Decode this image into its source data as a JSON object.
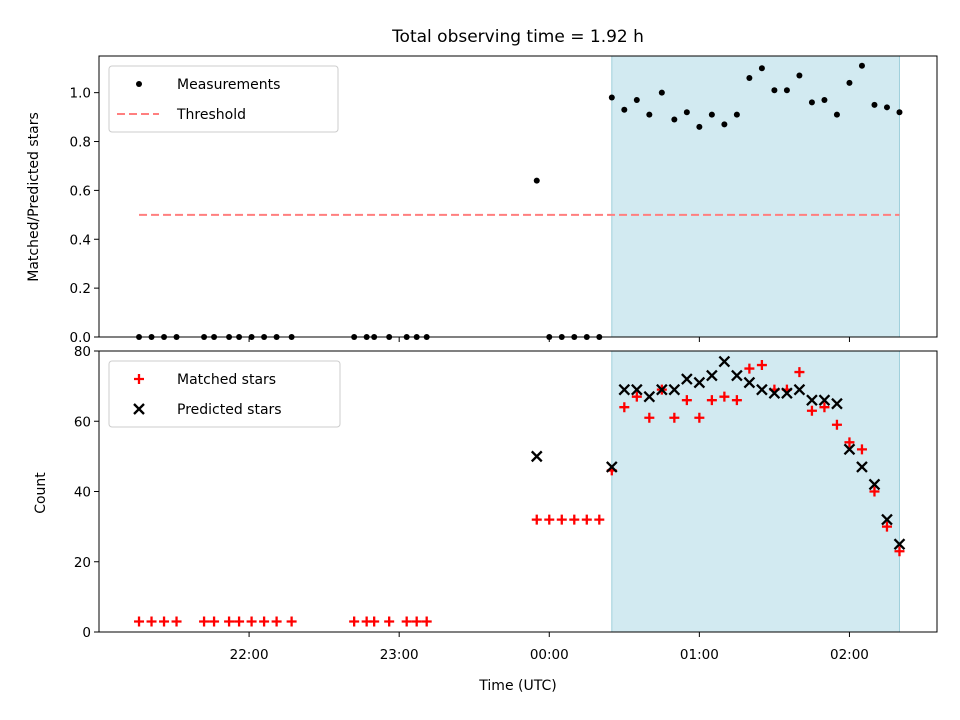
{
  "title": "Total observing time = 1.92 h",
  "colors": {
    "shade": "#add8e6",
    "measurement": "#000000",
    "threshold": "#ff7f7f",
    "matched": "#ff0000",
    "predicted": "#000000"
  },
  "chart_data": [
    {
      "type": "scatter",
      "ylabel": "Matched/Predicted stars",
      "xlabel": "",
      "ylim": [
        0,
        1.15
      ],
      "y_ticks": [
        "0.0",
        "0.2",
        "0.4",
        "0.6",
        "0.8",
        "1.0"
      ],
      "x_tick_labels_visible": false,
      "shaded_span": {
        "x": [
          "00:25",
          "02:20"
        ]
      },
      "legend": {
        "placement": "upper left",
        "entries": [
          "Measurements",
          "Threshold"
        ]
      },
      "threshold": {
        "name": "Threshold",
        "y": 0.5,
        "x": [
          "21:16",
          "02:20"
        ],
        "style": "dashed"
      },
      "series": [
        {
          "name": "Measurements",
          "x": [
            "21:16",
            "21:21",
            "21:26",
            "21:31",
            "21:42",
            "21:46",
            "21:52",
            "21:56",
            "22:01",
            "22:06",
            "22:11",
            "22:17",
            "22:42",
            "22:47",
            "22:50",
            "22:56",
            "23:03",
            "23:07",
            "23:11",
            "23:55",
            "00:00",
            "00:05",
            "00:10",
            "00:15",
            "00:20",
            "00:25",
            "00:30",
            "00:35",
            "00:40",
            "00:45",
            "00:50",
            "00:55",
            "01:00",
            "01:05",
            "01:10",
            "01:15",
            "01:20",
            "01:25",
            "01:30",
            "01:35",
            "01:40",
            "01:45",
            "01:50",
            "01:55",
            "02:00",
            "02:05",
            "02:10",
            "02:15",
            "02:20"
          ],
          "y": [
            0,
            0,
            0,
            0,
            0,
            0,
            0,
            0,
            0,
            0,
            0,
            0,
            0,
            0,
            0,
            0,
            0,
            0,
            0,
            0.64,
            0,
            0,
            0,
            0,
            0,
            0.98,
            0.93,
            0.97,
            0.91,
            1.0,
            0.89,
            0.92,
            0.86,
            0.91,
            0.87,
            0.91,
            1.06,
            1.1,
            1.01,
            1.01,
            1.07,
            0.96,
            0.97,
            0.91,
            1.04,
            1.11,
            0.95,
            0.94,
            0.92
          ]
        }
      ]
    },
    {
      "type": "scatter",
      "xlabel": "Time (UTC)",
      "ylabel": "Count",
      "ylim": [
        0,
        80
      ],
      "y_ticks": [
        "0",
        "20",
        "40",
        "60",
        "80"
      ],
      "x_ticks": [
        "22:00",
        "23:00",
        "00:00",
        "01:00",
        "02:00"
      ],
      "shaded_span": {
        "x": [
          "00:25",
          "02:20"
        ]
      },
      "legend": {
        "placement": "upper left",
        "entries": [
          "Matched stars",
          "Predicted stars"
        ]
      },
      "series": [
        {
          "name": "Matched stars",
          "marker": "+",
          "x": [
            "21:16",
            "21:21",
            "21:26",
            "21:31",
            "21:42",
            "21:46",
            "21:52",
            "21:56",
            "22:01",
            "22:06",
            "22:11",
            "22:17",
            "22:42",
            "22:47",
            "22:50",
            "22:56",
            "23:03",
            "23:07",
            "23:11",
            "23:55",
            "00:00",
            "00:05",
            "00:10",
            "00:15",
            "00:20",
            "00:25",
            "00:30",
            "00:35",
            "00:40",
            "00:45",
            "00:50",
            "00:55",
            "01:00",
            "01:05",
            "01:10",
            "01:15",
            "01:20",
            "01:25",
            "01:30",
            "01:35",
            "01:40",
            "01:45",
            "01:50",
            "01:55",
            "02:00",
            "02:05",
            "02:10",
            "02:15",
            "02:20"
          ],
          "y": [
            3,
            3,
            3,
            3,
            3,
            3,
            3,
            3,
            3,
            3,
            3,
            3,
            3,
            3,
            3,
            3,
            3,
            3,
            3,
            32,
            32,
            32,
            32,
            32,
            32,
            46,
            64,
            67,
            61,
            69,
            61,
            66,
            61,
            66,
            67,
            66,
            75,
            76,
            69,
            69,
            74,
            63,
            64,
            59,
            54,
            52,
            40,
            30,
            23
          ]
        },
        {
          "name": "Predicted stars",
          "marker": "x",
          "x": [
            "23:55",
            "00:25",
            "00:30",
            "00:35",
            "00:40",
            "00:45",
            "00:50",
            "00:55",
            "01:00",
            "01:05",
            "01:10",
            "01:15",
            "01:20",
            "01:25",
            "01:30",
            "01:35",
            "01:40",
            "01:45",
            "01:50",
            "01:55",
            "02:00",
            "02:05",
            "02:10",
            "02:15",
            "02:20"
          ],
          "y": [
            50,
            47,
            69,
            69,
            67,
            69,
            69,
            72,
            71,
            73,
            77,
            73,
            71,
            69,
            68,
            68,
            69,
            66,
            66,
            65,
            52,
            47,
            42,
            32,
            25
          ]
        }
      ]
    }
  ]
}
